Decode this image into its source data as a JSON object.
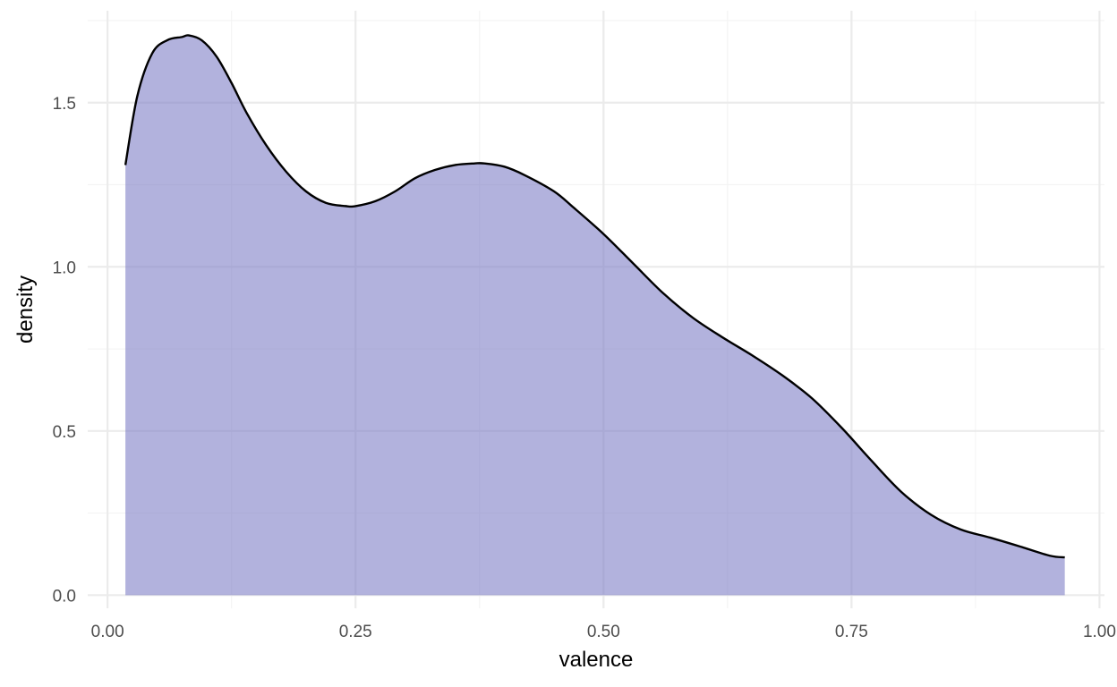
{
  "colors": {
    "background": "#ffffff",
    "grid_major": "#ebebeb",
    "grid_minor": "#f4f4f4",
    "area_fill": "#7b7bc4",
    "area_fill_opacity": 0.58,
    "line": "#000000",
    "tick_text": "#4d4d4d"
  },
  "chart_data": {
    "type": "area",
    "title": "",
    "xlabel": "valence",
    "ylabel": "density",
    "xlim": [
      -0.02,
      1.005
    ],
    "ylim": [
      -0.04,
      1.78
    ],
    "grid": true,
    "legend": "none",
    "x_ticks": [
      0.0,
      0.25,
      0.5,
      0.75,
      1.0
    ],
    "x_tick_labels": [
      "0.00",
      "0.25",
      "0.50",
      "0.75",
      "1.00"
    ],
    "x_minor_ticks": [
      0.125,
      0.375,
      0.625,
      0.875
    ],
    "y_ticks": [
      0.0,
      0.5,
      1.0,
      1.5
    ],
    "y_tick_labels": [
      "0.0",
      "0.5",
      "1.0",
      "1.5"
    ],
    "y_minor_ticks": [
      0.25,
      0.75,
      1.25,
      1.75
    ],
    "series": [
      {
        "x": [
          0.018,
          0.03,
          0.045,
          0.06,
          0.075,
          0.082,
          0.095,
          0.11,
          0.125,
          0.14,
          0.16,
          0.18,
          0.2,
          0.22,
          0.24,
          0.25,
          0.27,
          0.29,
          0.31,
          0.33,
          0.35,
          0.37,
          0.38,
          0.4,
          0.42,
          0.45,
          0.47,
          0.5,
          0.53,
          0.56,
          0.59,
          0.62,
          0.65,
          0.68,
          0.71,
          0.74,
          0.77,
          0.8,
          0.83,
          0.86,
          0.89,
          0.92,
          0.95,
          0.965
        ],
        "y": [
          1.31,
          1.52,
          1.65,
          1.69,
          1.7,
          1.705,
          1.69,
          1.64,
          1.56,
          1.47,
          1.37,
          1.29,
          1.23,
          1.195,
          1.185,
          1.185,
          1.2,
          1.23,
          1.27,
          1.295,
          1.31,
          1.315,
          1.315,
          1.305,
          1.28,
          1.23,
          1.18,
          1.1,
          1.01,
          0.92,
          0.845,
          0.785,
          0.73,
          0.67,
          0.6,
          0.51,
          0.41,
          0.315,
          0.245,
          0.2,
          0.175,
          0.148,
          0.12,
          0.115
        ]
      }
    ]
  }
}
